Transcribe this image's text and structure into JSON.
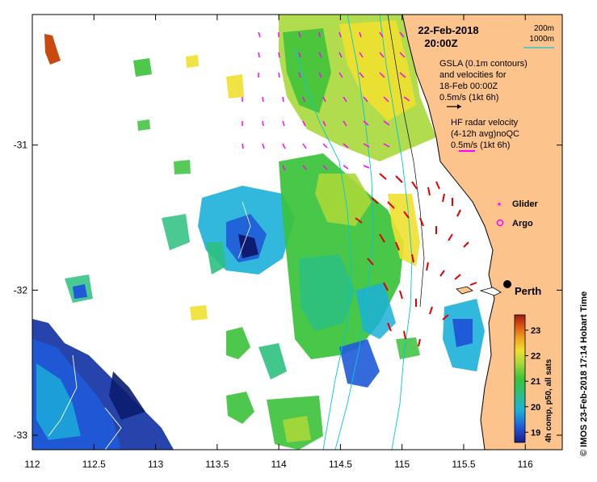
{
  "map": {
    "title_date": "22-Feb-2018",
    "title_time": "20:00Z",
    "depth_legend": {
      "shallow": "200m",
      "deep": "1000m",
      "shallow_color": "#000000",
      "deep_color": "#00c8d8"
    },
    "gsla_text": [
      "GSLA (0.1m contours)",
      "and velocities for",
      "18-Feb 00:00Z",
      "0.5m/s (1kt 6h)"
    ],
    "hf_text": [
      "HF radar velocity",
      "(4-12h avg)noQC",
      "0.5m/s (1kt 6h)"
    ],
    "markers": {
      "glider": "Glider",
      "argo": "Argo",
      "glider_color": "#ff00ff",
      "argo_color": "#ff00ff"
    },
    "city": {
      "name": "Perth",
      "lon": 115.86,
      "lat": -31.95
    },
    "side_label": "© IMOS 23-Feb-2018 17:14 Hobart Time",
    "colorbar": {
      "label": "4h comp, p50, all sats",
      "ticks": [
        "23",
        "22",
        "21",
        "20",
        "19"
      ],
      "tick_values": [
        23,
        22,
        21,
        20,
        19
      ],
      "range": [
        18.6,
        23.6
      ],
      "colors": [
        "#1a1a8a",
        "#1f5ad8",
        "#1cb0d8",
        "#2cc080",
        "#3ac23a",
        "#a8d83a",
        "#f0e030",
        "#f0a020",
        "#d85010",
        "#a01a10"
      ]
    },
    "land_color": "#fcc48c",
    "axes": {
      "x_ticks": [
        "112",
        "112.5",
        "113",
        "113.5",
        "114",
        "114.5",
        "115",
        "115.5",
        "116"
      ],
      "x_values": [
        112,
        112.5,
        113,
        113.5,
        114,
        114.5,
        115,
        115.5,
        116
      ],
      "y_ticks": [
        "-31",
        "-32",
        "-33"
      ],
      "y_values": [
        -31,
        -32,
        -33
      ],
      "xlim": [
        112,
        116.3
      ],
      "ylim": [
        -33.1,
        -30.1
      ]
    }
  }
}
